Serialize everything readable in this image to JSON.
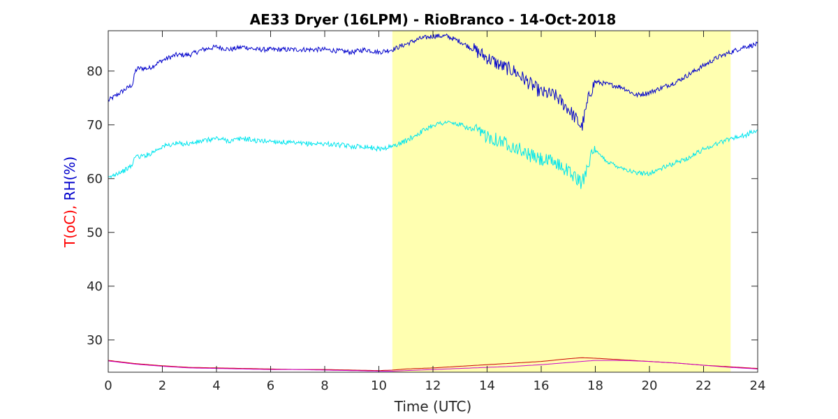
{
  "chart_data": {
    "type": "line",
    "title": "AE33 Dryer (16LPM)  - RioBranco - 14-Oct-2018",
    "xlabel": "Time (UTC)",
    "ylabel_parts": [
      {
        "text": "T(oC), ",
        "color": "#ff0000"
      },
      {
        "text": "RH(%)",
        "color": "#0000cc"
      }
    ],
    "xlim": [
      0,
      24
    ],
    "ylim": [
      24,
      87.5
    ],
    "xticks": [
      0,
      2,
      4,
      6,
      8,
      10,
      12,
      14,
      16,
      18,
      20,
      22,
      24
    ],
    "yticks": [
      30,
      40,
      50,
      60,
      70,
      80
    ],
    "grid": false,
    "shaded_region": {
      "x": [
        10.5,
        23
      ],
      "color": "#ffffb0"
    },
    "series": [
      {
        "color": "#0000cc",
        "x": [
          0,
          0.3,
          0.6,
          0.9,
          1.0,
          1.1,
          1.5,
          2.0,
          2.5,
          3.0,
          3.5,
          4.0,
          4.5,
          5.0,
          5.5,
          6.0,
          7.0,
          8.0,
          9.0,
          9.5,
          10.0,
          10.5,
          11.0,
          11.5,
          12.0,
          12.5,
          13.0,
          13.5,
          14.0,
          14.5,
          15.0,
          15.5,
          16.0,
          16.5,
          17.0,
          17.3,
          17.5,
          17.8,
          18.0,
          18.5,
          19.0,
          19.5,
          20.0,
          20.5,
          21.0,
          21.5,
          22.0,
          22.5,
          23.0,
          23.5,
          24.0
        ],
        "values": [
          74.5,
          75.5,
          76.5,
          77.5,
          80,
          80.5,
          80.5,
          82,
          83,
          83,
          84,
          84.5,
          84,
          84.5,
          84,
          84,
          84,
          84,
          83.5,
          84,
          83.5,
          84,
          85,
          86,
          86.5,
          86.5,
          85.5,
          84,
          82.5,
          81,
          80,
          78,
          76,
          75.5,
          73,
          71,
          69.5,
          76,
          78,
          77.5,
          77,
          75.5,
          76,
          77,
          78,
          79.5,
          81,
          82.5,
          83.5,
          84.5,
          85
        ]
      },
      {
        "color": "#00e5ee",
        "x": [
          0,
          0.3,
          0.6,
          0.9,
          1.0,
          1.1,
          1.5,
          2.0,
          2.5,
          3.0,
          3.5,
          4.0,
          4.5,
          5.0,
          5.5,
          6.0,
          7.0,
          8.0,
          9.0,
          9.5,
          10.0,
          10.5,
          11.0,
          11.5,
          12.0,
          12.5,
          13.0,
          13.5,
          14.0,
          14.5,
          15.0,
          15.5,
          16.0,
          16.5,
          17.0,
          17.3,
          17.5,
          17.8,
          18.0,
          18.5,
          19.0,
          19.5,
          20.0,
          20.5,
          21.0,
          21.5,
          22.0,
          22.5,
          23.0,
          23.5,
          24.0
        ],
        "values": [
          60,
          61,
          61.5,
          62.5,
          64.5,
          64,
          64.5,
          66,
          66.5,
          66.5,
          67,
          67.5,
          67,
          67.5,
          67,
          67,
          66.5,
          66.5,
          66,
          66,
          65.5,
          66,
          67,
          68.5,
          70,
          70.5,
          70,
          69,
          68,
          67,
          66,
          64.5,
          63.5,
          63,
          61.5,
          60,
          59,
          64,
          65,
          63,
          62,
          61,
          61,
          62,
          63,
          64,
          65.5,
          66.5,
          67.5,
          68,
          69
        ]
      },
      {
        "color": "#cc0000",
        "x": [
          0,
          1,
          2,
          3,
          4,
          5,
          6,
          7,
          8,
          9,
          10,
          10.5,
          11,
          12,
          13,
          14,
          15,
          16,
          17,
          17.5,
          18,
          19,
          20,
          21,
          22,
          23,
          24
        ],
        "values": [
          26.2,
          25.6,
          25.2,
          24.9,
          24.8,
          24.7,
          24.6,
          24.5,
          24.5,
          24.4,
          24.3,
          24.4,
          24.6,
          24.8,
          25.1,
          25.4,
          25.7,
          26.0,
          26.5,
          26.7,
          26.6,
          26.3,
          26.0,
          25.7,
          25.3,
          25.0,
          24.7
        ]
      },
      {
        "color": "#cc00cc",
        "x": [
          0,
          1,
          2,
          3,
          4,
          5,
          6,
          7,
          8,
          9,
          10,
          10.5,
          11,
          12,
          13,
          14,
          15,
          16,
          17,
          17.5,
          18,
          19,
          20,
          21,
          22,
          23,
          24
        ],
        "values": [
          26.1,
          25.5,
          25.1,
          24.8,
          24.7,
          24.6,
          24.5,
          24.5,
          24.4,
          24.3,
          24.2,
          24.2,
          24.3,
          24.5,
          24.7,
          24.9,
          25.1,
          25.4,
          25.8,
          26.0,
          26.2,
          26.2,
          26.0,
          25.7,
          25.3,
          24.9,
          24.6
        ]
      }
    ]
  }
}
